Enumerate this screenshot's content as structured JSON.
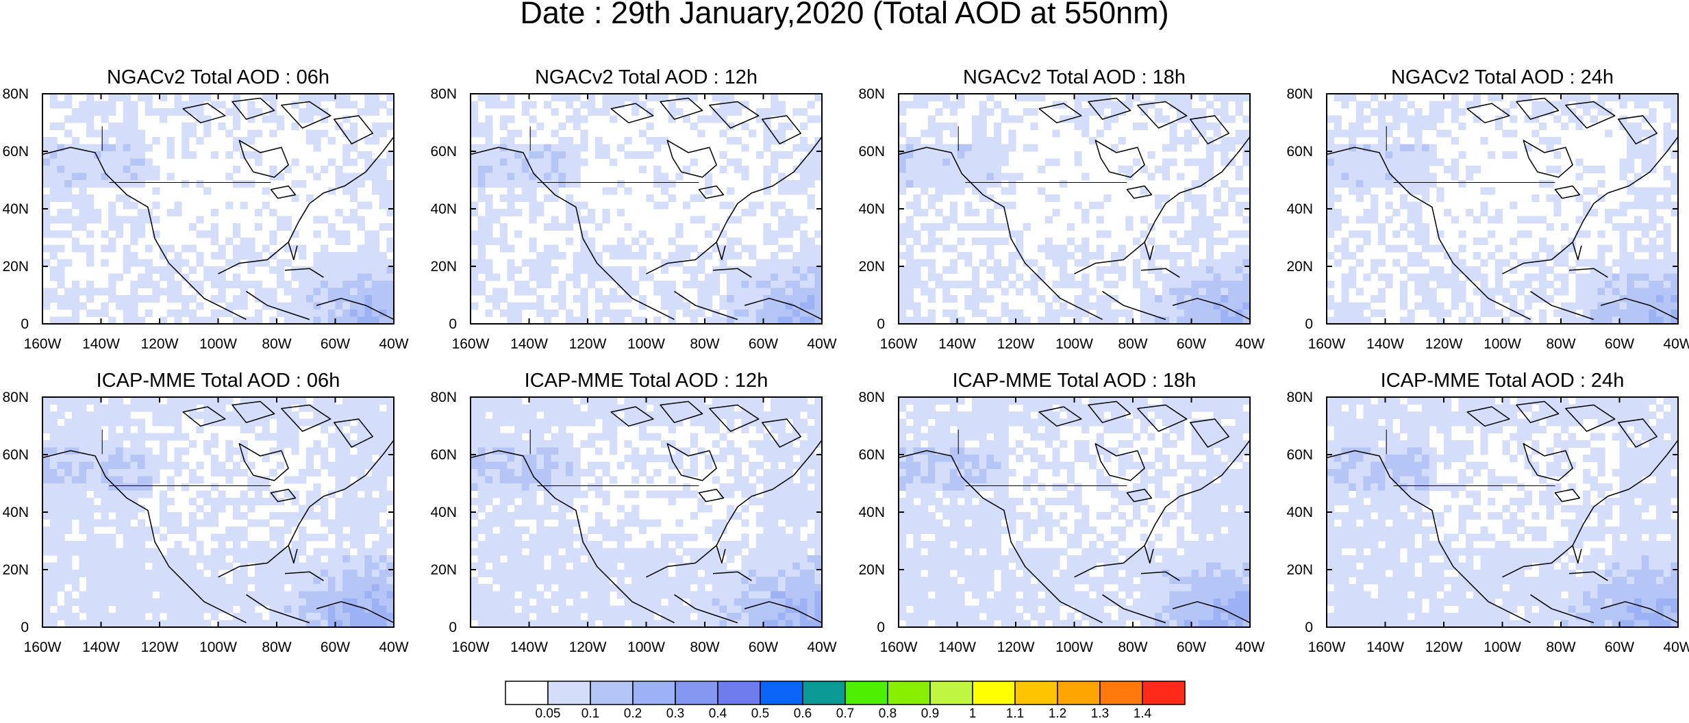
{
  "chart_data": {
    "type": "heatmap",
    "title": "Date : 29th January,2020 (Total AOD at 550nm)",
    "region": {
      "lon_range": [
        -160,
        -40
      ],
      "lat_range": [
        0,
        80
      ]
    },
    "x_ticks": [
      "160W",
      "140W",
      "120W",
      "100W",
      "80W",
      "60W",
      "40W"
    ],
    "y_ticks": [
      "0",
      "20N",
      "40N",
      "60N",
      "80N"
    ],
    "colorbar": {
      "levels": [
        "0.05",
        "0.1",
        "0.2",
        "0.3",
        "0.4",
        "0.5",
        "0.6",
        "0.7",
        "0.8",
        "0.9",
        "1",
        "1.1",
        "1.2",
        "1.3",
        "1.4"
      ],
      "colors": [
        "#ffffff",
        "#d4defa",
        "#b4c5f6",
        "#9cb2f4",
        "#8598f1",
        "#6f7cee",
        "#0a64f5",
        "#0b9994",
        "#4fef00",
        "#89ef00",
        "#c0f542",
        "#ffff00",
        "#ffc400",
        "#ffa500",
        "#ff7a0a",
        "#ff2a1a"
      ]
    },
    "panels": [
      {
        "title": "NGACv2 Total AOD : 06h",
        "model": "NGACv2",
        "forecast_hour": "06h"
      },
      {
        "title": "NGACv2 Total AOD : 12h",
        "model": "NGACv2",
        "forecast_hour": "12h"
      },
      {
        "title": "NGACv2 Total AOD : 18h",
        "model": "NGACv2",
        "forecast_hour": "18h"
      },
      {
        "title": "NGACv2 Total AOD : 24h",
        "model": "NGACv2",
        "forecast_hour": "24h"
      },
      {
        "title": "ICAP-MME Total AOD : 06h",
        "model": "ICAP-MME",
        "forecast_hour": "06h"
      },
      {
        "title": "ICAP-MME Total AOD : 12h",
        "model": "ICAP-MME",
        "forecast_hour": "12h"
      },
      {
        "title": "ICAP-MME Total AOD : 18h",
        "model": "ICAP-MME",
        "forecast_hour": "18h"
      },
      {
        "title": "ICAP-MME Total AOD : 24h",
        "model": "ICAP-MME",
        "forecast_hour": "24h"
      }
    ]
  }
}
